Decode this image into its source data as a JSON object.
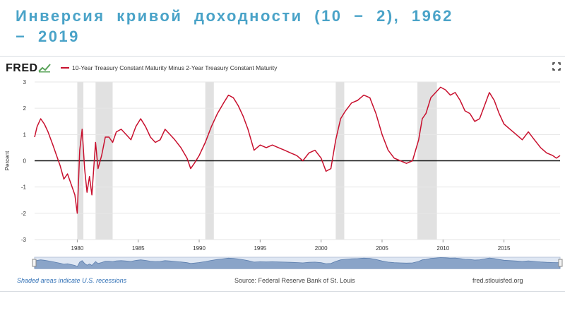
{
  "slide": {
    "title": "Инверсия  кривой  доходности  (10 − 2),  1962 − 2019"
  },
  "fred": {
    "logo": "FRED",
    "legend_label": "10-Year Treasury Constant Maturity Minus 2-Year Treasury Constant Maturity",
    "shaded_note": "Shaded areas indicate U.S. recessions",
    "source": "Source: Federal Reserve Bank of St. Louis",
    "url": "fred.stlouisfed.org"
  },
  "chart_data": {
    "type": "line",
    "title": "",
    "xlabel": "",
    "ylabel": "Percent",
    "xlim": [
      1976.5,
      2019.6
    ],
    "ylim": [
      -3,
      3
    ],
    "yticks": [
      3,
      2,
      1,
      0,
      -1,
      -2,
      -3
    ],
    "xticks": [
      1980,
      1985,
      1990,
      1995,
      2000,
      2005,
      2010,
      2015
    ],
    "grid": "horizontal",
    "line_color": "#c8102e",
    "zero_line": true,
    "recessions": [
      [
        1980.0,
        1980.5
      ],
      [
        1981.5,
        1982.9
      ],
      [
        1990.5,
        1991.2
      ],
      [
        2001.2,
        2001.9
      ],
      [
        2007.9,
        2009.5
      ]
    ],
    "series": [
      {
        "name": "10-Year Treasury Constant Maturity Minus 2-Year Treasury Constant Maturity",
        "x": [
          1976.5,
          1976.7,
          1977.0,
          1977.3,
          1977.6,
          1978.0,
          1978.3,
          1978.6,
          1978.9,
          1979.2,
          1979.5,
          1979.8,
          1980.0,
          1980.2,
          1980.4,
          1980.6,
          1980.8,
          1981.0,
          1981.2,
          1981.5,
          1981.7,
          1982.0,
          1982.3,
          1982.6,
          1982.9,
          1983.2,
          1983.6,
          1984.0,
          1984.4,
          1984.8,
          1985.2,
          1985.6,
          1986.0,
          1986.4,
          1986.8,
          1987.2,
          1987.6,
          1988.0,
          1988.5,
          1989.0,
          1989.3,
          1989.6,
          1990.0,
          1990.5,
          1991.0,
          1991.5,
          1992.0,
          1992.4,
          1992.8,
          1993.2,
          1993.6,
          1994.0,
          1994.5,
          1995.0,
          1995.5,
          1996.0,
          1996.5,
          1997.0,
          1997.5,
          1998.0,
          1998.5,
          1999.0,
          1999.5,
          2000.0,
          2000.4,
          2000.8,
          2001.2,
          2001.6,
          2002.0,
          2002.5,
          2003.0,
          2003.5,
          2004.0,
          2004.5,
          2005.0,
          2005.5,
          2006.0,
          2006.5,
          2007.0,
          2007.5,
          2008.0,
          2008.3,
          2008.6,
          2009.0,
          2009.4,
          2009.8,
          2010.2,
          2010.6,
          2011.0,
          2011.4,
          2011.8,
          2012.2,
          2012.6,
          2013.0,
          2013.4,
          2013.8,
          2014.2,
          2014.6,
          2015.0,
          2015.5,
          2016.0,
          2016.5,
          2017.0,
          2017.5,
          2018.0,
          2018.5,
          2019.0,
          2019.3,
          2019.6
        ],
        "values": [
          0.9,
          1.3,
          1.6,
          1.4,
          1.1,
          0.6,
          0.2,
          -0.2,
          -0.7,
          -0.5,
          -0.9,
          -1.3,
          -2.0,
          0.4,
          1.2,
          -0.3,
          -1.2,
          -0.6,
          -1.3,
          0.7,
          -0.3,
          0.2,
          0.9,
          0.9,
          0.7,
          1.1,
          1.2,
          1.0,
          0.8,
          1.3,
          1.6,
          1.3,
          0.9,
          0.7,
          0.8,
          1.2,
          1.0,
          0.8,
          0.5,
          0.1,
          -0.3,
          -0.1,
          0.2,
          0.7,
          1.3,
          1.8,
          2.2,
          2.5,
          2.4,
          2.1,
          1.7,
          1.2,
          0.4,
          0.6,
          0.5,
          0.6,
          0.5,
          0.4,
          0.3,
          0.2,
          0.0,
          0.3,
          0.4,
          0.1,
          -0.4,
          -0.3,
          0.8,
          1.6,
          1.9,
          2.2,
          2.3,
          2.5,
          2.4,
          1.8,
          1.0,
          0.4,
          0.1,
          0.0,
          -0.1,
          0.0,
          0.8,
          1.6,
          1.8,
          2.4,
          2.6,
          2.8,
          2.7,
          2.5,
          2.6,
          2.3,
          1.9,
          1.8,
          1.5,
          1.6,
          2.1,
          2.6,
          2.3,
          1.8,
          1.4,
          1.2,
          1.0,
          0.8,
          1.1,
          0.8,
          0.5,
          0.3,
          0.2,
          0.1,
          0.2
        ]
      }
    ]
  }
}
